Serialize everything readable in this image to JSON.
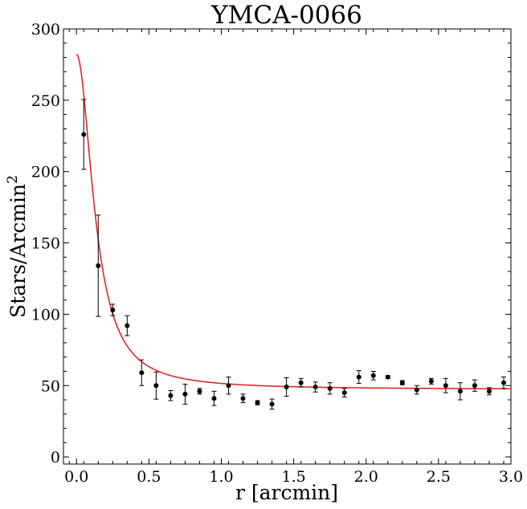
{
  "chart_data": {
    "type": "scatter",
    "title": "YMCA-0066",
    "xlabel": "r [arcmin]",
    "ylabel_main": "Stars/Arcmin",
    "ylabel_sup": "2",
    "xlim": [
      -0.09,
      3.0
    ],
    "ylim": [
      -5,
      300
    ],
    "xticks": [
      0.0,
      0.5,
      1.0,
      1.5,
      2.0,
      2.5,
      3.0
    ],
    "xtick_labels": [
      "0.0",
      "0.5",
      "1.0",
      "1.5",
      "2.0",
      "2.5",
      "3.0"
    ],
    "yticks": [
      0,
      50,
      100,
      150,
      200,
      250,
      300
    ],
    "ytick_labels": [
      "0",
      "50",
      "100",
      "150",
      "200",
      "250",
      "300"
    ],
    "grid": false,
    "series": [
      {
        "kind": "errorbar",
        "color": "#000000",
        "x": [
          0.05,
          0.15,
          0.25,
          0.35,
          0.45,
          0.55,
          0.65,
          0.75,
          0.85,
          0.95,
          1.05,
          1.15,
          1.25,
          1.35,
          1.45,
          1.55,
          1.65,
          1.75,
          1.85,
          1.95,
          2.05,
          2.15,
          2.25,
          2.35,
          2.45,
          2.55,
          2.65,
          2.75,
          2.85,
          2.95
        ],
        "y": [
          226,
          134,
          103,
          92,
          59,
          50,
          43,
          44,
          46,
          41,
          50,
          41,
          38,
          37,
          49,
          52,
          49,
          48,
          45,
          56,
          57,
          56,
          52,
          47,
          53,
          50,
          46,
          50,
          46,
          52
        ],
        "yerr": [
          24.5,
          35.5,
          4,
          7,
          9,
          9.5,
          3.5,
          7,
          2,
          5,
          6,
          3,
          1.5,
          3.5,
          6.5,
          3,
          3.5,
          4,
          3,
          4.5,
          3,
          1,
          1.5,
          3,
          2,
          5,
          6,
          4,
          2.5,
          4
        ]
      },
      {
        "kind": "king-profile-fit",
        "color": "#e8191c",
        "central_density": 235,
        "background": 47.3,
        "core_radius": 0.135
      }
    ]
  }
}
